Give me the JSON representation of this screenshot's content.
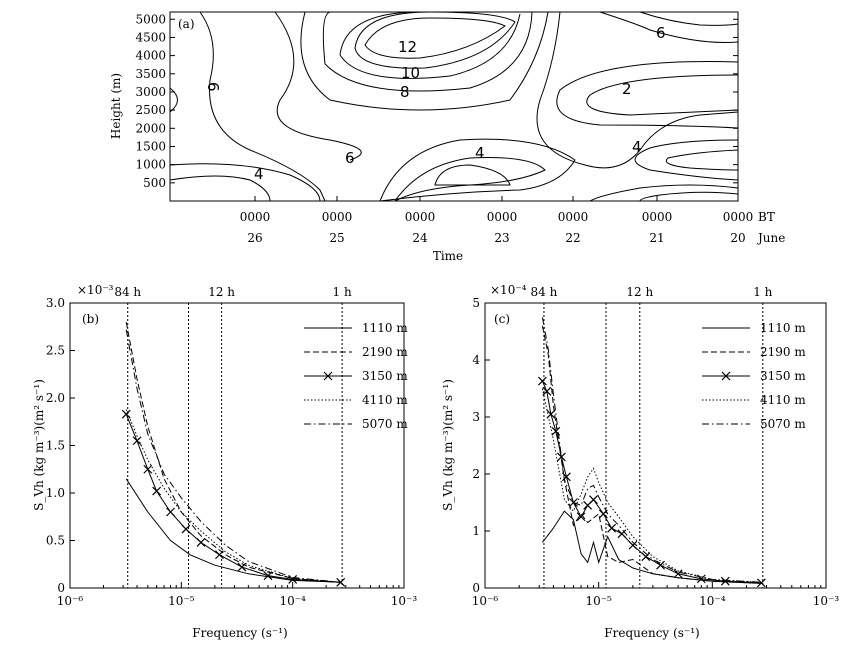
{
  "colors": {
    "ink": "#000000",
    "background": "#ffffff"
  },
  "chart_data": [
    {
      "type": "contour",
      "panel": "(a)",
      "xlabel": "Time",
      "ylabel": "Height (m)",
      "y_ticks": [
        "500",
        "1000",
        "1500",
        "2000",
        "2500",
        "3000",
        "3500",
        "4000",
        "4500",
        "5000"
      ],
      "ylim": [
        0,
        5200
      ],
      "x_ticks_time": [
        "0000",
        "0000",
        "0000",
        "0000",
        "0000",
        "0000",
        "0000"
      ],
      "x_ticks_day": [
        "26",
        "25",
        "24",
        "23",
        "22",
        "21",
        "20"
      ],
      "x_unit_top": "BT",
      "x_unit_bottom": "June",
      "contour_labels": [
        "12",
        "10",
        "8",
        "6",
        "6",
        "6",
        "4",
        "4",
        "4",
        "2"
      ]
    },
    {
      "type": "line",
      "panel": "(b)",
      "xscale": "log",
      "xlim": [
        1e-06,
        0.001
      ],
      "ylim": [
        0,
        3.0
      ],
      "y_multiplier": "×10⁻³",
      "xlabel": "Frequency (s⁻¹)",
      "ylabel": "S_Vh (kg m⁻³)(m² s⁻¹)",
      "x_tick_labels": [
        "10⁻⁶",
        "10⁻⁵",
        "10⁻⁴",
        "10⁻³"
      ],
      "y_tick_labels": [
        "0",
        "0.5",
        "1.0",
        "1.5",
        "2.0",
        "2.5",
        "3.0"
      ],
      "period_lines": [
        {
          "label": "84 h",
          "freq": 3.3e-06
        },
        {
          "label": "",
          "freq": 1.16e-05
        },
        {
          "label": "12 h",
          "freq": 2.3e-05
        },
        {
          "label": "1 h",
          "freq": 0.000278
        }
      ],
      "legend": [
        "1110 m",
        "2190 m",
        "3150 m",
        "4110 m",
        "5070 m"
      ],
      "series": [
        {
          "name": "1110 m",
          "x": [
            3.2e-06,
            5e-06,
            8e-06,
            1.2e-05,
            2e-05,
            4e-05,
            0.0001,
            0.00027
          ],
          "y": [
            1.15,
            0.8,
            0.5,
            0.35,
            0.24,
            0.15,
            0.08,
            0.06
          ]
        },
        {
          "name": "2190 m",
          "x": [
            3.2e-06,
            4e-06,
            5e-06,
            7e-06,
            1e-05,
            1.5e-05,
            2.5e-05,
            4e-05,
            0.0001,
            0.00027
          ],
          "y": [
            2.8,
            2.2,
            1.7,
            1.15,
            0.8,
            0.55,
            0.35,
            0.22,
            0.1,
            0.06
          ]
        },
        {
          "name": "3150 m",
          "x": [
            3.2e-06,
            4e-06,
            5e-06,
            6e-06,
            8e-06,
            1.1e-05,
            1.5e-05,
            2.2e-05,
            3.5e-05,
            6e-05,
            0.0001,
            0.00027
          ],
          "y": [
            1.83,
            1.55,
            1.25,
            1.02,
            0.8,
            0.62,
            0.48,
            0.35,
            0.22,
            0.13,
            0.09,
            0.06
          ]
        },
        {
          "name": "4110 m",
          "x": [
            3.2e-06,
            4e-06,
            5e-06,
            7e-06,
            1e-05,
            1.5e-05,
            2.5e-05,
            4e-05,
            0.0001,
            0.00027
          ],
          "y": [
            1.88,
            1.6,
            1.35,
            1.05,
            0.8,
            0.6,
            0.38,
            0.24,
            0.1,
            0.06
          ]
        },
        {
          "name": "5070 m",
          "x": [
            3.2e-06,
            4e-06,
            5e-06,
            7e-06,
            1e-05,
            1.5e-05,
            2.5e-05,
            4e-05,
            0.0001,
            0.00027
          ],
          "y": [
            2.72,
            2.1,
            1.62,
            1.2,
            0.95,
            0.7,
            0.45,
            0.28,
            0.11,
            0.06
          ]
        }
      ]
    },
    {
      "type": "line",
      "panel": "(c)",
      "xscale": "log",
      "xlim": [
        1e-06,
        0.001
      ],
      "ylim": [
        0,
        5
      ],
      "y_multiplier": "×10⁻⁴",
      "xlabel": "Frequency (s⁻¹)",
      "ylabel": "S_Vh (kg m⁻³)(m² s⁻¹)",
      "x_tick_labels": [
        "10⁻⁶",
        "10⁻⁵",
        "10⁻⁴",
        "10⁻³"
      ],
      "y_tick_labels": [
        "0",
        "1",
        "2",
        "3",
        "4",
        "5"
      ],
      "period_lines": [
        {
          "label": "84 h",
          "freq": 3.3e-06
        },
        {
          "label": "",
          "freq": 1.16e-05
        },
        {
          "label": "12 h",
          "freq": 2.3e-05
        },
        {
          "label": "1 h",
          "freq": 0.000278
        }
      ],
      "legend": [
        "1110 m",
        "2190 m",
        "3150 m",
        "4110 m",
        "5070 m"
      ],
      "series": [
        {
          "name": "1110 m",
          "x": [
            3.2e-06,
            4e-06,
            5e-06,
            6e-06,
            7e-06,
            8e-06,
            9e-06,
            1e-05,
            1.2e-05,
            1.5e-05,
            2e-05,
            3e-05,
            5e-05,
            0.0001,
            0.00027
          ],
          "y": [
            0.8,
            1.05,
            1.35,
            1.2,
            0.6,
            0.45,
            0.8,
            0.45,
            0.9,
            0.5,
            0.35,
            0.25,
            0.18,
            0.12,
            0.08
          ]
        },
        {
          "name": "2190 m",
          "x": [
            3.2e-06,
            3.6e-06,
            4e-06,
            4.5e-06,
            5e-06,
            6e-06,
            7e-06,
            8e-06,
            1e-05,
            1.2e-05,
            1.5e-05,
            2e-05,
            3e-05,
            5e-05,
            0.0001,
            0.00027
          ],
          "y": [
            4.6,
            4.1,
            3.2,
            2.5,
            1.9,
            1.1,
            1.3,
            1.15,
            1.3,
            0.55,
            0.45,
            0.5,
            0.25,
            0.18,
            0.12,
            0.08
          ]
        },
        {
          "name": "3150 m",
          "x": [
            3.2e-06,
            3.5e-06,
            3.8e-06,
            4.2e-06,
            4.7e-06,
            5.2e-06,
            6e-06,
            7e-06,
            8e-06,
            9e-06,
            1.1e-05,
            1.3e-05,
            1.6e-05,
            2e-05,
            2.6e-05,
            3.5e-05,
            5e-05,
            8e-05,
            0.00013,
            0.00027
          ],
          "y": [
            3.63,
            3.45,
            3.05,
            2.75,
            2.3,
            1.95,
            1.5,
            1.25,
            1.45,
            1.55,
            1.3,
            1.05,
            0.95,
            0.75,
            0.55,
            0.4,
            0.25,
            0.16,
            0.12,
            0.09
          ]
        },
        {
          "name": "4110 m",
          "x": [
            3.2e-06,
            4e-06,
            5e-06,
            6e-06,
            7e-06,
            8e-06,
            9e-06,
            1e-05,
            1.2e-05,
            1.5e-05,
            2e-05,
            3e-05,
            5e-05,
            0.0001,
            0.00027
          ],
          "y": [
            3.5,
            2.6,
            1.55,
            1.35,
            1.65,
            1.95,
            2.1,
            1.85,
            1.5,
            1.25,
            0.9,
            0.55,
            0.3,
            0.15,
            0.1
          ]
        },
        {
          "name": "5070 m",
          "x": [
            3.2e-06,
            3.6e-06,
            4e-06,
            4.5e-06,
            5e-06,
            6e-06,
            7e-06,
            8e-06,
            9e-06,
            1e-05,
            1.2e-05,
            1.5e-05,
            2e-05,
            3e-05,
            5e-05,
            0.0001,
            0.00027
          ],
          "y": [
            4.75,
            4.2,
            3.4,
            2.6,
            1.9,
            1.5,
            1.45,
            1.75,
            1.8,
            1.6,
            1.3,
            1.1,
            0.8,
            0.5,
            0.28,
            0.15,
            0.1
          ]
        }
      ]
    }
  ]
}
